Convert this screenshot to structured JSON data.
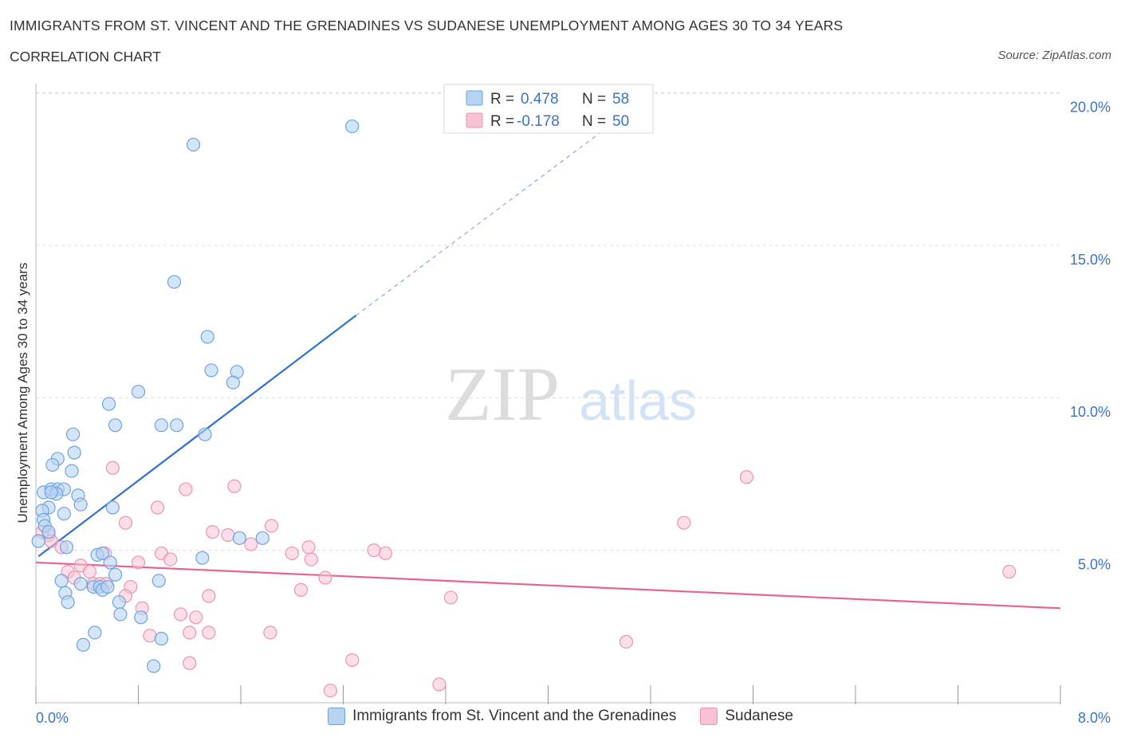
{
  "title": "IMMIGRANTS FROM ST. VINCENT AND THE GRENADINES VS SUDANESE UNEMPLOYMENT AMONG AGES 30 TO 34 YEARS",
  "subtitle": "CORRELATION CHART",
  "source": "Source: ZipAtlas.com",
  "watermark": {
    "zip": "ZIP",
    "atlas": "atlas"
  },
  "legend_top": [
    {
      "r_label": "R =",
      "r_value": "0.478",
      "n_label": "N =",
      "n_value": "58"
    },
    {
      "r_label": "R =",
      "r_value": "-0.178",
      "n_label": "N =",
      "n_value": "50"
    }
  ],
  "legend_bottom": [
    "Immigrants from St. Vincent and the Grenadines",
    "Sudanese"
  ],
  "colors": {
    "blue_fill": "#b7d3f4",
    "blue_stroke": "#6fa3e0",
    "blue_line": "#2f72d0",
    "pink_fill": "#f7c3d3",
    "pink_stroke": "#eb94b2",
    "pink_line": "#e36590",
    "tick_text": "#3b73c5",
    "grid": "#d9d9d9"
  },
  "chart_data": {
    "type": "scatter",
    "title": "IMMIGRANTS FROM ST. VINCENT AND THE GRENADINES VS SUDANESE UNEMPLOYMENT AMONG AGES 30 TO 34 YEARS",
    "xlabel": "",
    "ylabel": "Unemployment Among Ages 30 to 34 years",
    "xlim": [
      0,
      8
    ],
    "ylim": [
      0,
      20.3
    ],
    "x_tick_labels": [
      "0.0%",
      "8.0%"
    ],
    "y_ticks": [
      5,
      10,
      15,
      20
    ],
    "y_tick_labels": [
      "5.0%",
      "10.0%",
      "15.0%",
      "20.0%"
    ],
    "grid": true,
    "legend_position": "top-center",
    "series": [
      {
        "name": "Immigrants from St. Vincent and the Grenadines",
        "color": "#6fa3e0",
        "r": 0.478,
        "n": 58,
        "trend": {
          "x": [
            0.02,
            2.5
          ],
          "y": [
            4.8,
            12.7
          ],
          "extend_to": [
            4.6,
            19.3
          ]
        },
        "points": [
          [
            2.47,
            18.9
          ],
          [
            1.23,
            18.3
          ],
          [
            1.08,
            13.8
          ],
          [
            1.34,
            12.0
          ],
          [
            1.37,
            10.9
          ],
          [
            1.57,
            10.85
          ],
          [
            1.54,
            10.5
          ],
          [
            0.8,
            10.2
          ],
          [
            0.57,
            9.8
          ],
          [
            0.62,
            9.1
          ],
          [
            0.98,
            9.1
          ],
          [
            1.1,
            9.1
          ],
          [
            1.32,
            8.8
          ],
          [
            0.29,
            8.8
          ],
          [
            0.3,
            8.2
          ],
          [
            0.17,
            8.0
          ],
          [
            0.13,
            7.8
          ],
          [
            0.28,
            7.6
          ],
          [
            0.06,
            6.9
          ],
          [
            0.12,
            7.0
          ],
          [
            0.17,
            7.0
          ],
          [
            0.22,
            7.0
          ],
          [
            0.16,
            6.85
          ],
          [
            0.33,
            6.8
          ],
          [
            0.35,
            6.5
          ],
          [
            0.1,
            6.4
          ],
          [
            0.05,
            6.3
          ],
          [
            0.6,
            6.4
          ],
          [
            0.22,
            6.2
          ],
          [
            0.06,
            6.0
          ],
          [
            0.07,
            5.8
          ],
          [
            0.1,
            5.6
          ],
          [
            0.02,
            5.3
          ],
          [
            1.59,
            5.4
          ],
          [
            1.77,
            5.4
          ],
          [
            0.24,
            5.1
          ],
          [
            0.48,
            4.85
          ],
          [
            0.52,
            4.9
          ],
          [
            1.3,
            4.75
          ],
          [
            0.58,
            4.6
          ],
          [
            0.62,
            4.2
          ],
          [
            0.2,
            4.0
          ],
          [
            0.35,
            3.9
          ],
          [
            0.45,
            3.8
          ],
          [
            0.5,
            3.8
          ],
          [
            0.52,
            3.7
          ],
          [
            0.56,
            3.8
          ],
          [
            0.96,
            4.0
          ],
          [
            0.23,
            3.6
          ],
          [
            0.25,
            3.3
          ],
          [
            0.65,
            3.3
          ],
          [
            0.66,
            2.9
          ],
          [
            0.82,
            2.8
          ],
          [
            0.46,
            2.3
          ],
          [
            0.37,
            1.9
          ],
          [
            0.98,
            2.1
          ],
          [
            0.92,
            1.2
          ],
          [
            0.12,
            6.9
          ]
        ]
      },
      {
        "name": "Sudanese",
        "color": "#eb94b2",
        "r": -0.178,
        "n": 50,
        "trend": {
          "x": [
            0.0,
            8.0
          ],
          "y": [
            4.6,
            3.1
          ]
        },
        "points": [
          [
            0.6,
            7.7
          ],
          [
            1.55,
            7.1
          ],
          [
            1.17,
            7.0
          ],
          [
            5.55,
            7.4
          ],
          [
            0.95,
            6.4
          ],
          [
            0.7,
            5.9
          ],
          [
            5.06,
            5.9
          ],
          [
            1.84,
            5.8
          ],
          [
            1.38,
            5.6
          ],
          [
            1.5,
            5.5
          ],
          [
            0.1,
            5.5
          ],
          [
            0.05,
            5.6
          ],
          [
            0.12,
            5.3
          ],
          [
            0.2,
            5.1
          ],
          [
            1.68,
            5.2
          ],
          [
            2.13,
            5.1
          ],
          [
            2.64,
            5.0
          ],
          [
            2.73,
            4.9
          ],
          [
            0.54,
            4.9
          ],
          [
            0.98,
            4.9
          ],
          [
            1.05,
            4.7
          ],
          [
            2.0,
            4.9
          ],
          [
            2.15,
            4.7
          ],
          [
            0.8,
            4.6
          ],
          [
            0.35,
            4.5
          ],
          [
            0.25,
            4.3
          ],
          [
            0.42,
            4.3
          ],
          [
            7.6,
            4.3
          ],
          [
            2.26,
            4.1
          ],
          [
            0.3,
            4.1
          ],
          [
            0.45,
            3.9
          ],
          [
            0.5,
            3.9
          ],
          [
            0.55,
            3.9
          ],
          [
            0.74,
            3.8
          ],
          [
            0.7,
            3.5
          ],
          [
            2.07,
            3.7
          ],
          [
            1.35,
            3.5
          ],
          [
            3.24,
            3.45
          ],
          [
            0.83,
            3.1
          ],
          [
            1.13,
            2.9
          ],
          [
            1.25,
            2.8
          ],
          [
            0.89,
            2.2
          ],
          [
            1.2,
            2.3
          ],
          [
            1.35,
            2.3
          ],
          [
            1.83,
            2.3
          ],
          [
            4.61,
            2.0
          ],
          [
            1.2,
            1.3
          ],
          [
            2.47,
            1.4
          ],
          [
            3.15,
            0.6
          ],
          [
            2.3,
            0.4
          ]
        ]
      }
    ]
  }
}
